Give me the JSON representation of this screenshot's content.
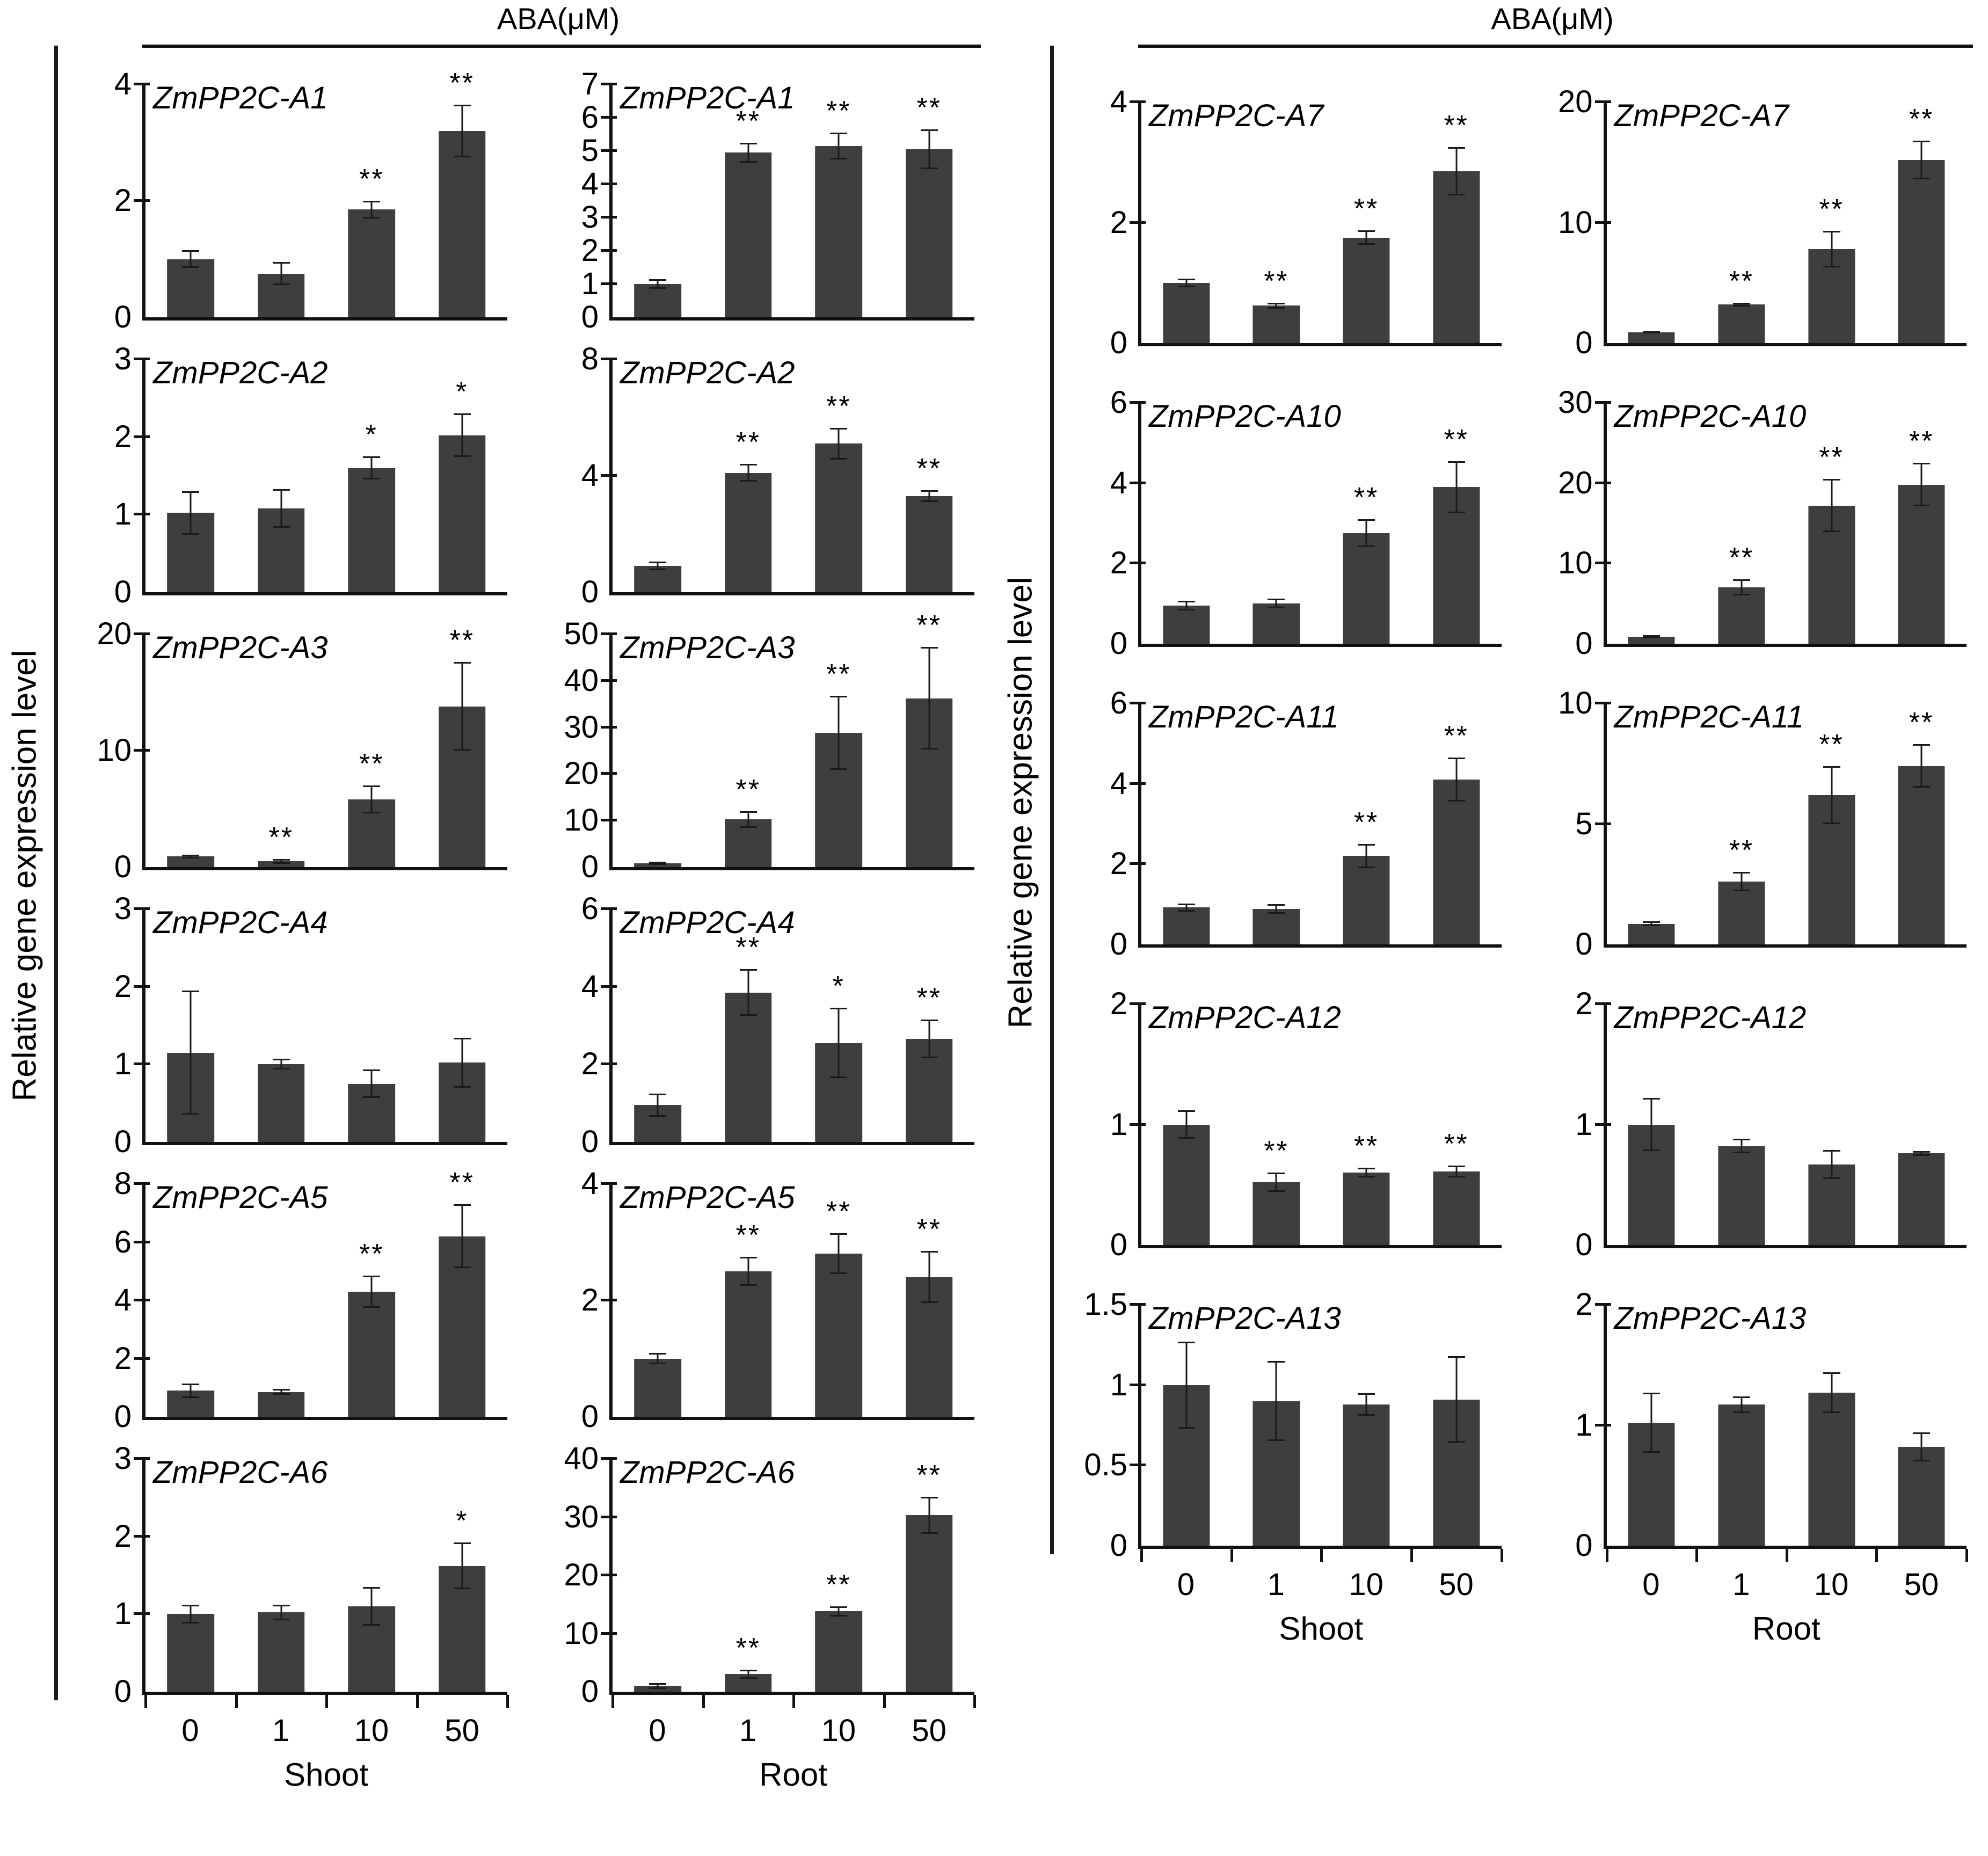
{
  "figure": {
    "panels": [
      {
        "header": "ABA(μM)",
        "y_axis_label": "Relative gene expression level",
        "columns": [
          "Shoot",
          "Root"
        ]
      },
      {
        "header": "ABA(μM)",
        "y_axis_label": "Relative gene expression level",
        "columns": [
          "Shoot",
          "Root"
        ]
      }
    ],
    "categories": [
      "0",
      "1",
      "10",
      "50"
    ],
    "colors": {
      "bar": "#3e3e3e",
      "axis": "#111111",
      "text": "#000000"
    },
    "significance_symbols": [
      "*",
      "**"
    ]
  },
  "chart_data": [
    {
      "type": "bar",
      "panel": 0,
      "row": 0,
      "tissue": "Shoot",
      "gene": "ZmPP2C-A1",
      "categories": [
        "0",
        "1",
        "10",
        "50"
      ],
      "values": [
        1.0,
        0.75,
        1.85,
        3.2
      ],
      "errors": [
        0.15,
        0.2,
        0.15,
        0.45
      ],
      "sig": [
        "",
        "",
        "**",
        "**"
      ],
      "yticks": [
        0,
        2,
        4
      ],
      "ylim": [
        0,
        4
      ]
    },
    {
      "type": "bar",
      "panel": 0,
      "row": 0,
      "tissue": "Root",
      "gene": "ZmPP2C-A1",
      "categories": [
        "0",
        "1",
        "10",
        "50"
      ],
      "values": [
        1.0,
        4.95,
        5.15,
        5.05
      ],
      "errors": [
        0.15,
        0.3,
        0.4,
        0.6
      ],
      "sig": [
        "",
        "**",
        "**",
        "**"
      ],
      "yticks": [
        0,
        1,
        2,
        3,
        4,
        5,
        6,
        7
      ],
      "ylim": [
        0,
        7
      ]
    },
    {
      "type": "bar",
      "panel": 0,
      "row": 1,
      "tissue": "Shoot",
      "gene": "ZmPP2C-A2",
      "categories": [
        "0",
        "1",
        "10",
        "50"
      ],
      "values": [
        1.02,
        1.08,
        1.6,
        2.02
      ],
      "errors": [
        0.28,
        0.25,
        0.15,
        0.28
      ],
      "sig": [
        "",
        "",
        "*",
        "*"
      ],
      "yticks": [
        0,
        1,
        2,
        3
      ],
      "ylim": [
        0,
        3
      ]
    },
    {
      "type": "bar",
      "panel": 0,
      "row": 1,
      "tissue": "Root",
      "gene": "ZmPP2C-A2",
      "categories": [
        "0",
        "1",
        "10",
        "50"
      ],
      "values": [
        0.9,
        4.1,
        5.1,
        3.3
      ],
      "errors": [
        0.15,
        0.3,
        0.55,
        0.2
      ],
      "sig": [
        "",
        "**",
        "**",
        "**"
      ],
      "yticks": [
        0,
        4,
        8
      ],
      "ylim": [
        0,
        8
      ]
    },
    {
      "type": "bar",
      "panel": 0,
      "row": 2,
      "tissue": "Shoot",
      "gene": "ZmPP2C-A3",
      "categories": [
        "0",
        "1",
        "10",
        "50"
      ],
      "values": [
        0.9,
        0.5,
        5.8,
        13.8
      ],
      "errors": [
        0.15,
        0.2,
        1.2,
        3.8
      ],
      "sig": [
        "",
        "**",
        "**",
        "**"
      ],
      "yticks": [
        0,
        10,
        20
      ],
      "ylim": [
        0,
        20
      ]
    },
    {
      "type": "bar",
      "panel": 0,
      "row": 2,
      "tissue": "Root",
      "gene": "ZmPP2C-A3",
      "categories": [
        "0",
        "1",
        "10",
        "50"
      ],
      "values": [
        0.8,
        10.2,
        28.8,
        36.2
      ],
      "errors": [
        0.3,
        1.8,
        8.0,
        11.0
      ],
      "sig": [
        "",
        "**",
        "**",
        "**"
      ],
      "yticks": [
        0,
        10,
        20,
        30,
        40,
        50
      ],
      "ylim": [
        0,
        50
      ]
    },
    {
      "type": "bar",
      "panel": 0,
      "row": 3,
      "tissue": "Shoot",
      "gene": "ZmPP2C-A4",
      "categories": [
        "0",
        "1",
        "10",
        "50"
      ],
      "values": [
        1.15,
        1.0,
        0.75,
        1.02
      ],
      "errors": [
        0.8,
        0.07,
        0.18,
        0.32
      ],
      "sig": [
        "",
        "",
        "",
        ""
      ],
      "yticks": [
        0,
        1,
        2,
        3
      ],
      "ylim": [
        0,
        3
      ]
    },
    {
      "type": "bar",
      "panel": 0,
      "row": 3,
      "tissue": "Root",
      "gene": "ZmPP2C-A4",
      "categories": [
        "0",
        "1",
        "10",
        "50"
      ],
      "values": [
        0.95,
        3.85,
        2.55,
        2.65
      ],
      "errors": [
        0.3,
        0.6,
        0.9,
        0.5
      ],
      "sig": [
        "",
        "**",
        "*",
        "**"
      ],
      "yticks": [
        0,
        2,
        4,
        6
      ],
      "ylim": [
        0,
        6
      ]
    },
    {
      "type": "bar",
      "panel": 0,
      "row": 4,
      "tissue": "Shoot",
      "gene": "ZmPP2C-A5",
      "categories": [
        "0",
        "1",
        "10",
        "50"
      ],
      "values": [
        0.9,
        0.85,
        4.3,
        6.2
      ],
      "errors": [
        0.25,
        0.1,
        0.55,
        1.1
      ],
      "sig": [
        "",
        "",
        "**",
        "**"
      ],
      "yticks": [
        0,
        2,
        4,
        6,
        8
      ],
      "ylim": [
        0,
        8
      ]
    },
    {
      "type": "bar",
      "panel": 0,
      "row": 4,
      "tissue": "Root",
      "gene": "ZmPP2C-A5",
      "categories": [
        "0",
        "1",
        "10",
        "50"
      ],
      "values": [
        1.0,
        2.5,
        2.8,
        2.4
      ],
      "errors": [
        0.1,
        0.25,
        0.35,
        0.45
      ],
      "sig": [
        "",
        "**",
        "**",
        "**"
      ],
      "yticks": [
        0,
        2,
        4
      ],
      "ylim": [
        0,
        4
      ]
    },
    {
      "type": "bar",
      "panel": 0,
      "row": 5,
      "tissue": "Shoot",
      "gene": "ZmPP2C-A6",
      "categories": [
        "0",
        "1",
        "10",
        "50"
      ],
      "values": [
        1.0,
        1.02,
        1.1,
        1.62
      ],
      "errors": [
        0.12,
        0.1,
        0.25,
        0.3
      ],
      "sig": [
        "",
        "",
        "",
        "*"
      ],
      "yticks": [
        0,
        1,
        2,
        3
      ],
      "ylim": [
        0,
        3
      ]
    },
    {
      "type": "bar",
      "panel": 0,
      "row": 5,
      "tissue": "Root",
      "gene": "ZmPP2C-A6",
      "categories": [
        "0",
        "1",
        "10",
        "50"
      ],
      "values": [
        1.0,
        3.0,
        13.8,
        30.3
      ],
      "errors": [
        0.5,
        0.8,
        0.9,
        3.2
      ],
      "sig": [
        "",
        "**",
        "**",
        "**"
      ],
      "yticks": [
        0,
        10,
        20,
        30,
        40
      ],
      "ylim": [
        0,
        40
      ]
    },
    {
      "type": "bar",
      "panel": 1,
      "row": 0,
      "tissue": "Shoot",
      "gene": "ZmPP2C-A7",
      "categories": [
        "0",
        "1",
        "10",
        "50"
      ],
      "values": [
        1.0,
        0.62,
        1.75,
        2.85
      ],
      "errors": [
        0.07,
        0.05,
        0.12,
        0.4
      ],
      "sig": [
        "",
        "**",
        "**",
        "**"
      ],
      "yticks": [
        0,
        2,
        4
      ],
      "ylim": [
        0,
        4
      ]
    },
    {
      "type": "bar",
      "panel": 1,
      "row": 0,
      "tissue": "Root",
      "gene": "ZmPP2C-A7",
      "categories": [
        "0",
        "1",
        "10",
        "50"
      ],
      "values": [
        0.9,
        3.2,
        7.8,
        15.2
      ],
      "errors": [
        0.1,
        0.15,
        1.5,
        1.6
      ],
      "sig": [
        "",
        "**",
        "**",
        "**"
      ],
      "yticks": [
        0,
        10,
        20
      ],
      "ylim": [
        0,
        20
      ]
    },
    {
      "type": "bar",
      "panel": 1,
      "row": 1,
      "tissue": "Shoot",
      "gene": "ZmPP2C-A10",
      "categories": [
        "0",
        "1",
        "10",
        "50"
      ],
      "values": [
        0.95,
        1.0,
        2.75,
        3.9
      ],
      "errors": [
        0.12,
        0.12,
        0.35,
        0.65
      ],
      "sig": [
        "",
        "",
        "**",
        "**"
      ],
      "yticks": [
        0,
        2,
        4,
        6
      ],
      "ylim": [
        0,
        6
      ]
    },
    {
      "type": "bar",
      "panel": 1,
      "row": 1,
      "tissue": "Root",
      "gene": "ZmPP2C-A10",
      "categories": [
        "0",
        "1",
        "10",
        "50"
      ],
      "values": [
        0.9,
        7.0,
        17.2,
        19.8
      ],
      "errors": [
        0.2,
        1.0,
        3.3,
        2.7
      ],
      "sig": [
        "",
        "**",
        "**",
        "**"
      ],
      "yticks": [
        0,
        10,
        20,
        30
      ],
      "ylim": [
        0,
        30
      ]
    },
    {
      "type": "bar",
      "panel": 1,
      "row": 2,
      "tissue": "Shoot",
      "gene": "ZmPP2C-A11",
      "categories": [
        "0",
        "1",
        "10",
        "50"
      ],
      "values": [
        0.92,
        0.88,
        2.2,
        4.1
      ],
      "errors": [
        0.1,
        0.12,
        0.3,
        0.55
      ],
      "sig": [
        "",
        "",
        "**",
        "**"
      ],
      "yticks": [
        0,
        2,
        4,
        6
      ],
      "ylim": [
        0,
        6
      ]
    },
    {
      "type": "bar",
      "panel": 1,
      "row": 2,
      "tissue": "Root",
      "gene": "ZmPP2C-A11",
      "categories": [
        "0",
        "1",
        "10",
        "50"
      ],
      "values": [
        0.85,
        2.6,
        6.2,
        7.4
      ],
      "errors": [
        0.1,
        0.4,
        1.2,
        0.9
      ],
      "sig": [
        "",
        "**",
        "**",
        "**"
      ],
      "yticks": [
        0,
        5,
        10
      ],
      "ylim": [
        0,
        10
      ]
    },
    {
      "type": "bar",
      "panel": 1,
      "row": 3,
      "tissue": "Shoot",
      "gene": "ZmPP2C-A12",
      "categories": [
        "0",
        "1",
        "10",
        "50"
      ],
      "values": [
        1.0,
        0.52,
        0.6,
        0.61
      ],
      "errors": [
        0.12,
        0.08,
        0.04,
        0.05
      ],
      "sig": [
        "",
        "**",
        "**",
        "**"
      ],
      "yticks": [
        0,
        1,
        2
      ],
      "ylim": [
        0,
        2
      ]
    },
    {
      "type": "bar",
      "panel": 1,
      "row": 3,
      "tissue": "Root",
      "gene": "ZmPP2C-A12",
      "categories": [
        "0",
        "1",
        "10",
        "50"
      ],
      "values": [
        1.0,
        0.82,
        0.67,
        0.76
      ],
      "errors": [
        0.22,
        0.06,
        0.12,
        0.02
      ],
      "sig": [
        "",
        "",
        "",
        ""
      ],
      "yticks": [
        0,
        1,
        2
      ],
      "ylim": [
        0,
        2
      ]
    },
    {
      "type": "bar",
      "panel": 1,
      "row": 4,
      "tissue": "Shoot",
      "gene": "ZmPP2C-A13",
      "categories": [
        "0",
        "1",
        "10",
        "50"
      ],
      "values": [
        1.0,
        0.9,
        0.88,
        0.91
      ],
      "errors": [
        0.27,
        0.25,
        0.07,
        0.27
      ],
      "sig": [
        "",
        "",
        "",
        ""
      ],
      "yticks": [
        0,
        0.5,
        1,
        1.5
      ],
      "ylim": [
        0,
        1.5
      ]
    },
    {
      "type": "bar",
      "panel": 1,
      "row": 4,
      "tissue": "Root",
      "gene": "ZmPP2C-A13",
      "categories": [
        "0",
        "1",
        "10",
        "50"
      ],
      "values": [
        1.02,
        1.17,
        1.27,
        0.82
      ],
      "errors": [
        0.25,
        0.07,
        0.17,
        0.12
      ],
      "sig": [
        "",
        "",
        "",
        ""
      ],
      "yticks": [
        0,
        1,
        2
      ],
      "ylim": [
        0,
        2
      ]
    }
  ]
}
